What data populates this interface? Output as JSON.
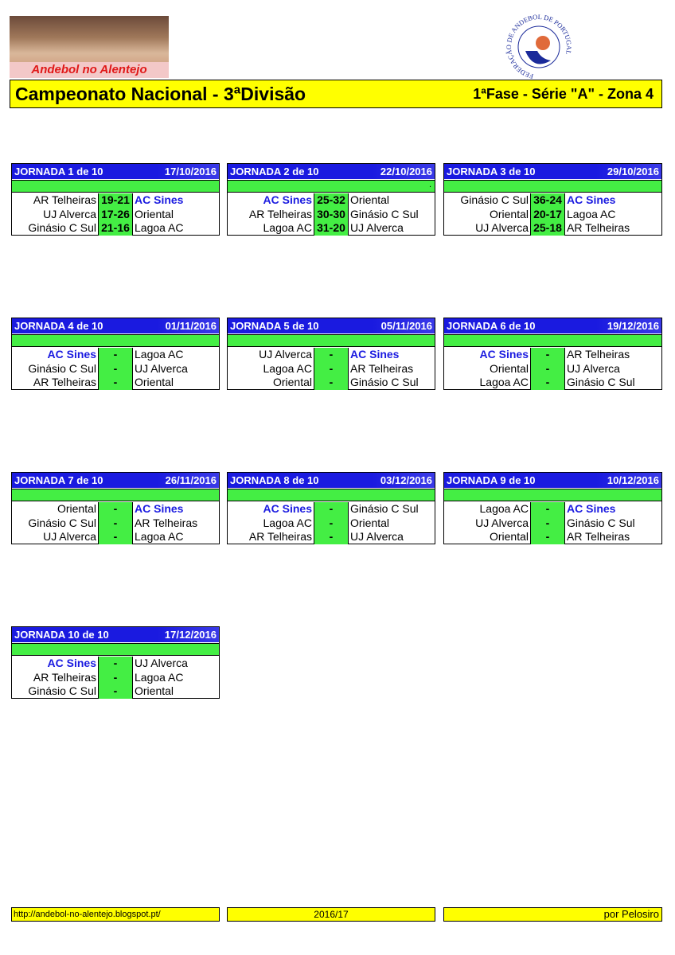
{
  "header": {
    "logo_text": "Andebol no Alentejo",
    "federation_text": "FEDERAÇÃO DE ANDEBOL DE PORTUGAL",
    "title": "Campeonato Nacional - 3ªDivisão",
    "subtitle": "1ªFase - Série \"A\" - Zona 4"
  },
  "highlight": "AC Sines",
  "jornadas": [
    {
      "title": "JORNADA 1 de 10",
      "date": "17/10/2016",
      "games": [
        {
          "home": "AR Telheiras",
          "score": "19-21",
          "away": "AC Sines"
        },
        {
          "home": "UJ Alverca",
          "score": "17-26",
          "away": "Oriental"
        },
        {
          "home": "Ginásio C Sul",
          "score": "21-16",
          "away": "Lagoa AC"
        }
      ]
    },
    {
      "title": "JORNADA 2 de 10",
      "date": "22/10/2016",
      "note": ".",
      "games": [
        {
          "home": "AC Sines",
          "score": "25-32",
          "away": "Oriental"
        },
        {
          "home": "AR Telheiras",
          "score": "30-30",
          "away": "Ginásio C Sul"
        },
        {
          "home": "Lagoa AC",
          "score": "31-20",
          "away": "UJ Alverca"
        }
      ]
    },
    {
      "title": "JORNADA 3 de 10",
      "date": "29/10/2016",
      "games": [
        {
          "home": "Ginásio C Sul",
          "score": "36-24",
          "away": "AC Sines"
        },
        {
          "home": "Oriental",
          "score": "20-17",
          "away": "Lagoa AC"
        },
        {
          "home": "UJ Alverca",
          "score": "25-18",
          "away": "AR Telheiras"
        }
      ]
    },
    {
      "title": "JORNADA 4 de 10",
      "date": "01/11/2016",
      "games": [
        {
          "home": "AC Sines",
          "score": "-",
          "away": "Lagoa AC"
        },
        {
          "home": "Ginásio C Sul",
          "score": "-",
          "away": "UJ Alverca"
        },
        {
          "home": "AR Telheiras",
          "score": "-",
          "away": "Oriental"
        }
      ]
    },
    {
      "title": "JORNADA 5 de 10",
      "date": "05/11/2016",
      "games": [
        {
          "home": "UJ Alverca",
          "score": "-",
          "away": "AC Sines"
        },
        {
          "home": "Lagoa AC",
          "score": "-",
          "away": "AR Telheiras"
        },
        {
          "home": "Oriental",
          "score": "-",
          "away": "Ginásio C Sul"
        }
      ]
    },
    {
      "title": "JORNADA 6 de 10",
      "date": "19/12/2016",
      "games": [
        {
          "home": "AC Sines",
          "score": "-",
          "away": "AR Telheiras"
        },
        {
          "home": "Oriental",
          "score": "-",
          "away": "UJ Alverca"
        },
        {
          "home": "Lagoa AC",
          "score": "-",
          "away": "Ginásio C Sul"
        }
      ]
    },
    {
      "title": "JORNADA 7 de 10",
      "date": "26/11/2016",
      "games": [
        {
          "home": "Oriental",
          "score": "-",
          "away": "AC Sines"
        },
        {
          "home": "Ginásio C Sul",
          "score": "-",
          "away": "AR Telheiras"
        },
        {
          "home": "UJ Alverca",
          "score": "-",
          "away": "Lagoa AC"
        }
      ]
    },
    {
      "title": "JORNADA 8 de 10",
      "date": "03/12/2016",
      "games": [
        {
          "home": "AC Sines",
          "score": "-",
          "away": "Ginásio C Sul"
        },
        {
          "home": "Lagoa AC",
          "score": "-",
          "away": "Oriental"
        },
        {
          "home": "AR Telheiras",
          "score": "-",
          "away": "UJ Alverca"
        }
      ]
    },
    {
      "title": "JORNADA 9 de 10",
      "date": "10/12/2016",
      "games": [
        {
          "home": "Lagoa AC",
          "score": "-",
          "away": "AC Sines"
        },
        {
          "home": "UJ Alverca",
          "score": "-",
          "away": "Ginásio C Sul"
        },
        {
          "home": "Oriental",
          "score": "-",
          "away": "AR Telheiras"
        }
      ]
    },
    {
      "title": "JORNADA 10 de 10",
      "date": "17/12/2016",
      "games": [
        {
          "home": "AC Sines",
          "score": "-",
          "away": "UJ Alverca"
        },
        {
          "home": "AR Telheiras",
          "score": "-",
          "away": "Lagoa AC"
        },
        {
          "home": "Ginásio C Sul",
          "score": "-",
          "away": "Oriental"
        }
      ]
    }
  ],
  "footer": {
    "url": "http://andebol-no-alentejo.blogspot.pt/",
    "season": "2016/17",
    "author": "por Pelosiro"
  }
}
